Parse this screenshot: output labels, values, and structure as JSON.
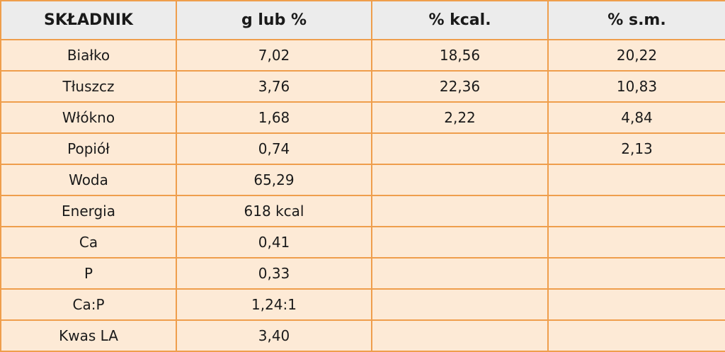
{
  "table": {
    "header": {
      "name": "SKŁADNIK",
      "g": "g lub %",
      "kcal": "% kcal.",
      "sm": "% s.m."
    },
    "rows": [
      {
        "name": "Białko",
        "g": "7,02",
        "kcal": "18,56",
        "sm": "20,22"
      },
      {
        "name": "Tłuszcz",
        "g": "3,76",
        "kcal": "22,36",
        "sm": "10,83"
      },
      {
        "name": "Włókno",
        "g": "1,68",
        "kcal": "2,22",
        "sm": "4,84"
      },
      {
        "name": "Popiół",
        "g": "0,74",
        "sm": "2,13"
      },
      {
        "name": "Woda",
        "g": "65,29"
      },
      {
        "name": "Energia",
        "g": "618 kcal"
      },
      {
        "name": "Ca",
        "g": "0,41"
      },
      {
        "name": "P",
        "g": "0,33"
      },
      {
        "name": "Ca:P",
        "g": "1,24:1"
      },
      {
        "name": "Kwas LA",
        "g": "3,40"
      }
    ]
  }
}
